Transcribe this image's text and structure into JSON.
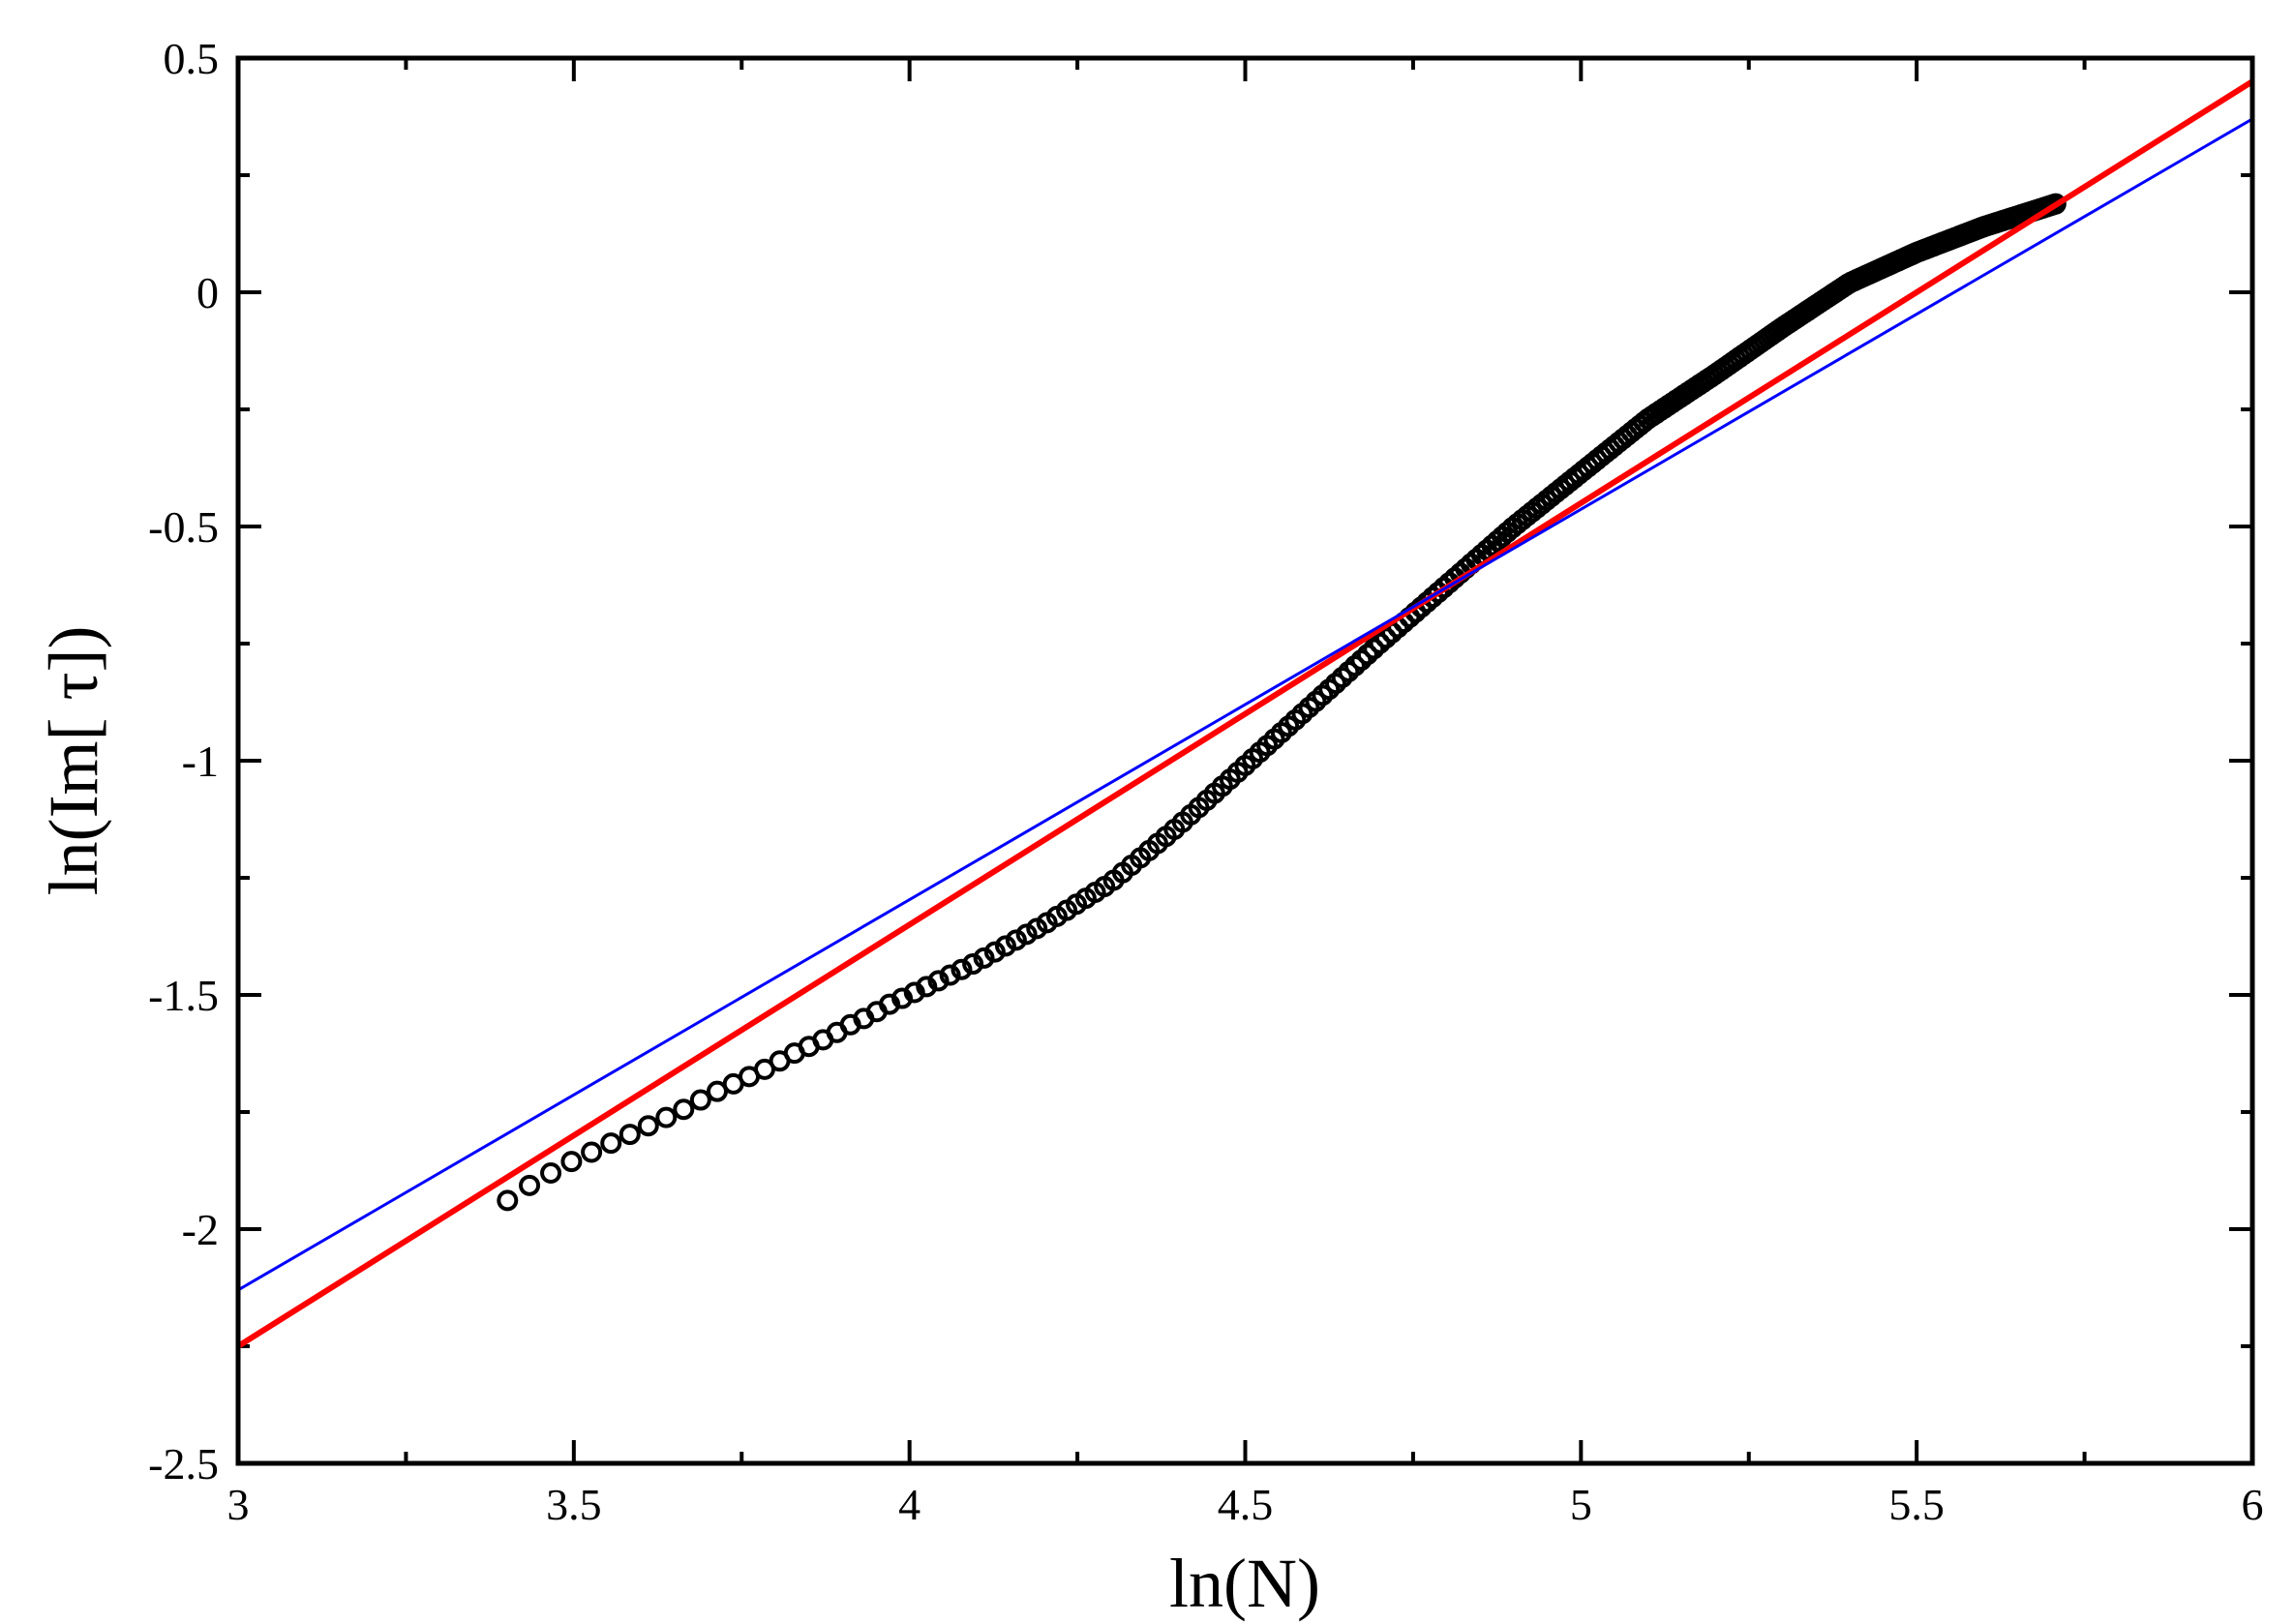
{
  "chart_data": {
    "type": "scatter",
    "xlabel": "ln(N)",
    "ylabel": "ln(Im[ τ])",
    "xlim": [
      3,
      6
    ],
    "ylim": [
      -2.5,
      0.5
    ],
    "x_ticks": [
      3,
      3.5,
      4,
      4.5,
      5,
      5.5,
      6
    ],
    "x_tick_labels": [
      "3",
      "3.5",
      "4",
      "4.5",
      "5",
      "5.5",
      "6"
    ],
    "y_ticks": [
      -2.5,
      -2,
      -1.5,
      -1,
      -0.5,
      0,
      0.5
    ],
    "y_tick_labels": [
      "-2.5",
      "-2",
      "-1.5",
      "-1",
      "-0.5",
      "0",
      "0.5"
    ],
    "grid": false,
    "series": [
      {
        "kind": "scatter",
        "marker": "open-circle",
        "color": "#000000",
        "x_range": [
          3.4,
          5.71
        ],
        "points": [
          [
            3.4,
            -1.94
          ],
          [
            3.43,
            -1.91
          ],
          [
            3.46,
            -1.885
          ],
          [
            3.49,
            -1.86
          ],
          [
            3.52,
            -1.84
          ],
          [
            3.55,
            -1.82
          ],
          [
            3.58,
            -1.8
          ],
          [
            3.61,
            -1.78
          ],
          [
            3.64,
            -1.76
          ],
          [
            3.67,
            -1.74
          ],
          [
            3.7,
            -1.715
          ],
          [
            3.73,
            -1.695
          ],
          [
            3.76,
            -1.675
          ],
          [
            3.79,
            -1.655
          ],
          [
            3.82,
            -1.63
          ],
          [
            3.85,
            -1.61
          ],
          [
            3.88,
            -1.59
          ],
          [
            3.91,
            -1.565
          ],
          [
            3.94,
            -1.545
          ],
          [
            3.97,
            -1.52
          ],
          [
            4.0,
            -1.5
          ],
          [
            4.1,
            -1.43
          ],
          [
            4.2,
            -1.35
          ],
          [
            4.3,
            -1.26
          ],
          [
            4.4,
            -1.14
          ],
          [
            4.5,
            -1.01
          ],
          [
            4.6,
            -0.88
          ],
          [
            4.7,
            -0.75
          ],
          [
            4.8,
            -0.625
          ],
          [
            4.9,
            -0.5
          ],
          [
            5.0,
            -0.385
          ],
          [
            5.1,
            -0.27
          ],
          [
            5.2,
            -0.175
          ],
          [
            5.3,
            -0.075
          ],
          [
            5.4,
            0.02
          ],
          [
            5.5,
            0.085
          ],
          [
            5.6,
            0.14
          ],
          [
            5.71,
            0.19
          ]
        ]
      },
      {
        "kind": "line",
        "color": "#ff0000",
        "points": [
          [
            3,
            -2.25
          ],
          [
            6,
            0.45
          ]
        ]
      },
      {
        "kind": "line",
        "color": "#0000ff",
        "points": [
          [
            3,
            -2.13
          ],
          [
            6,
            0.37
          ]
        ]
      }
    ]
  }
}
